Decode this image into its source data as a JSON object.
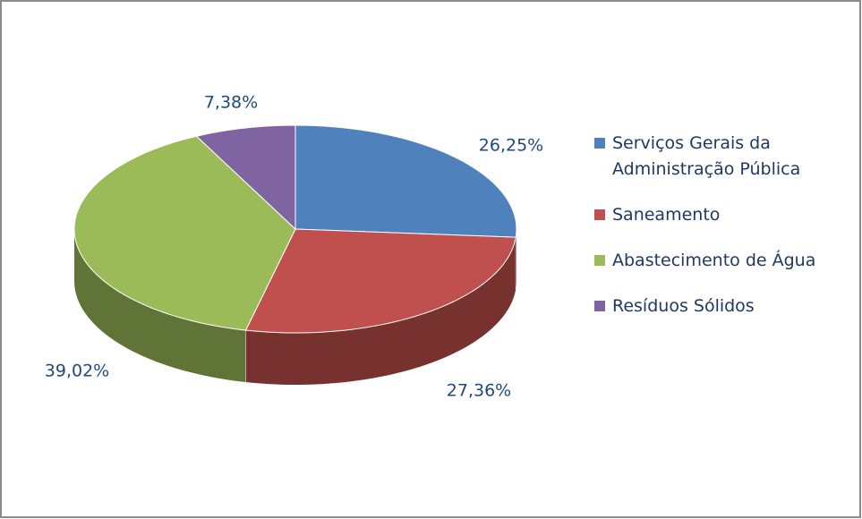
{
  "chart_data": {
    "type": "pie3d",
    "categories": [
      "Serviços Gerais da Administração Pública",
      "Saneamento",
      "Abastecimento de Água",
      "Resíduos Sólidos"
    ],
    "values": [
      26.25,
      27.36,
      39.02,
      7.38
    ],
    "value_labels": [
      "26,25%",
      "27,36%",
      "39,02%",
      "7,38%"
    ],
    "colors": [
      "#4f81bd",
      "#c0504d",
      "#9bbb59",
      "#8064a2"
    ],
    "legend": "right"
  }
}
